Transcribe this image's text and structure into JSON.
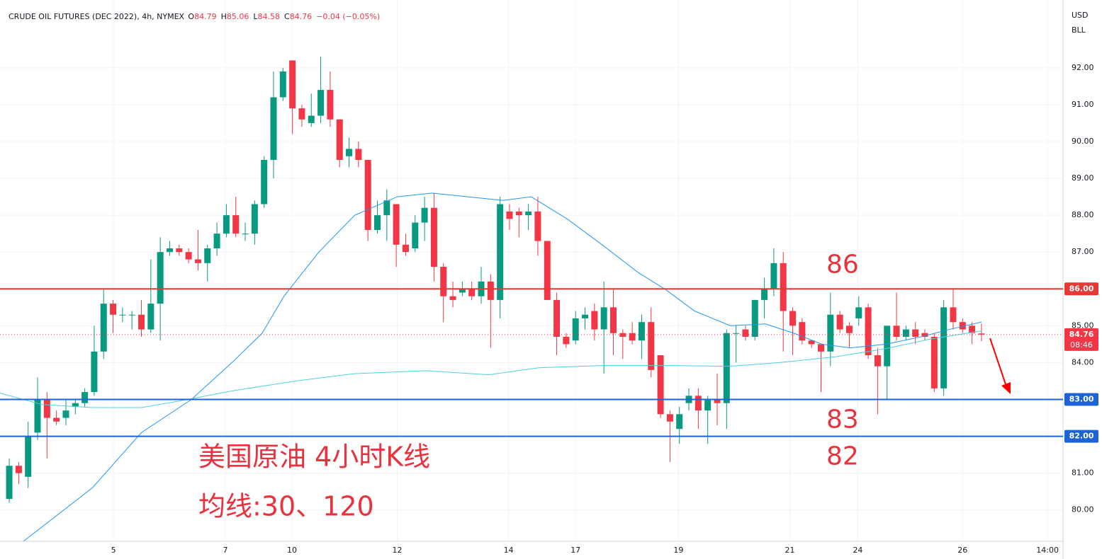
{
  "chart_data": {
    "type": "candlestick",
    "title": "CRUDE OIL FUTURES (DEC 2022), 4h, NYMEX",
    "ohlc_legend": [
      {
        "prefix": "O",
        "value": 84.79
      },
      {
        "prefix": "H",
        "value": 85.06
      },
      {
        "prefix": "L",
        "value": 84.58
      },
      {
        "prefix": "C",
        "value": 84.76
      }
    ],
    "change": "−0.04 (−0.05%)",
    "currency": "USD",
    "unit": "BLL",
    "up_color": "#089981",
    "down_color": "#f23645",
    "x": [
      0,
      1,
      2,
      3,
      4,
      5,
      6,
      7,
      8,
      9,
      10,
      11,
      12,
      13,
      14,
      15,
      16,
      17,
      18,
      19,
      20,
      21,
      22,
      23,
      24,
      25,
      26,
      27,
      28,
      29,
      30,
      31,
      32,
      33,
      34,
      35,
      36,
      37,
      38,
      39,
      40,
      41,
      42,
      43,
      44,
      45,
      46,
      47,
      48,
      49,
      50,
      51,
      52,
      53,
      54,
      55,
      56,
      57,
      58,
      59,
      60,
      61,
      62,
      63,
      64,
      65,
      66,
      67,
      68,
      69,
      70,
      71,
      72,
      73,
      74,
      75,
      76,
      77,
      78,
      79,
      80,
      81,
      82,
      83,
      84,
      85,
      86,
      87,
      88,
      89,
      90,
      91,
      92,
      93,
      94,
      95,
      96,
      97,
      98,
      99,
      100,
      101,
      102,
      103
    ],
    "open": [
      80.3,
      81.2,
      80.9,
      82.1,
      83.0,
      82.5,
      82.5,
      82.8,
      82.9,
      83.2,
      84.3,
      85.6,
      85.3,
      85.3,
      85.3,
      84.9,
      85.6,
      87.0,
      87.1,
      87.0,
      86.8,
      86.7,
      87.1,
      87.5,
      88.0,
      87.5,
      87.5,
      88.3,
      89.5,
      91.2,
      92.2,
      90.9,
      90.5,
      90.7,
      91.4,
      90.6,
      89.6,
      89.8,
      89.5,
      87.6,
      88.0,
      88.3,
      87.2,
      87.1,
      87.8,
      88.2,
      86.6,
      85.8,
      85.9,
      86.0,
      85.8,
      86.2,
      85.7,
      88.1,
      88.1,
      88.0,
      88.1,
      87.3,
      85.7,
      84.7,
      84.6,
      85.2,
      85.4,
      84.9,
      85.5,
      84.8,
      84.8,
      84.6,
      85.1,
      84.2,
      82.6,
      82.2,
      82.9,
      83.1,
      82.7,
      83.0,
      82.9,
      84.8,
      84.9,
      84.7,
      85.7,
      86.0,
      86.7,
      85.4,
      85.1,
      84.6,
      84.5,
      84.3,
      85.3,
      85.0,
      85.2,
      85.5,
      84.2,
      83.9,
      85.0,
      84.7,
      84.9,
      84.8,
      84.7,
      83.3,
      85.5,
      85.1,
      85.0,
      84.79
    ],
    "high": [
      81.4,
      81.3,
      82.4,
      83.6,
      83.2,
      82.7,
      83.0,
      83.0,
      83.3,
      85.0,
      86.0,
      85.7,
      85.5,
      85.4,
      85.7,
      86.8,
      87.4,
      87.3,
      87.2,
      87.1,
      87.6,
      87.2,
      87.8,
      88.3,
      88.5,
      87.8,
      88.4,
      89.6,
      91.9,
      92.0,
      92.2,
      91.0,
      91.3,
      92.3,
      91.9,
      90.6,
      90.1,
      90.0,
      89.5,
      88.4,
      88.7,
      88.3,
      87.5,
      88.0,
      88.5,
      88.6,
      86.7,
      86.2,
      86.2,
      86.2,
      86.6,
      86.4,
      88.5,
      88.3,
      88.2,
      88.3,
      88.5,
      87.3,
      85.9,
      84.8,
      85.4,
      85.5,
      85.6,
      86.2,
      86.0,
      84.9,
      85.1,
      85.3,
      85.5,
      84.2,
      82.7,
      82.8,
      83.3,
      83.3,
      83.1,
      83.7,
      84.9,
      85.0,
      85.0,
      85.7,
      86.3,
      87.1,
      87.0,
      85.5,
      85.2,
      84.6,
      84.5,
      85.9,
      85.4,
      85.1,
      85.8,
      85.6,
      84.4,
      85.0,
      85.9,
      85.0,
      85.1,
      84.9,
      84.8,
      85.7,
      86.0,
      85.2,
      85.1,
      85.06
    ],
    "low": [
      80.2,
      80.7,
      80.6,
      81.9,
      81.4,
      82.3,
      82.3,
      82.6,
      82.8,
      83.1,
      84.1,
      84.8,
      85.1,
      84.9,
      84.7,
      84.8,
      84.6,
      86.9,
      86.9,
      86.7,
      86.5,
      86.2,
      86.9,
      87.4,
      87.4,
      87.3,
      87.2,
      88.2,
      89.0,
      91.1,
      90.2,
      90.4,
      90.4,
      90.5,
      90.4,
      89.3,
      89.3,
      89.3,
      87.3,
      87.5,
      87.3,
      86.6,
      86.9,
      87.0,
      87.3,
      86.2,
      85.1,
      85.5,
      85.8,
      85.7,
      85.6,
      84.4,
      85.2,
      87.6,
      87.4,
      87.6,
      86.9,
      85.7,
      84.2,
      84.4,
      84.5,
      84.9,
      84.6,
      83.7,
      84.2,
      84.1,
      84.5,
      84.1,
      83.6,
      82.5,
      81.3,
      81.8,
      82.7,
      82.2,
      81.8,
      82.3,
      82.2,
      84.0,
      84.6,
      84.6,
      85.2,
      85.8,
      84.3,
      84.2,
      84.5,
      84.4,
      83.2,
      83.9,
      84.8,
      84.4,
      85.0,
      84.1,
      82.6,
      83.0,
      84.6,
      84.6,
      84.5,
      84.6,
      83.2,
      83.1,
      84.9,
      84.8,
      84.5,
      84.58
    ],
    "close": [
      81.2,
      81.0,
      82.0,
      83.0,
      82.5,
      82.4,
      82.7,
      82.9,
      83.2,
      84.3,
      85.6,
      85.3,
      85.3,
      85.3,
      84.9,
      85.6,
      87.0,
      87.1,
      87.0,
      86.8,
      86.7,
      87.1,
      87.5,
      88.0,
      87.5,
      87.5,
      88.3,
      89.5,
      91.2,
      91.9,
      90.9,
      90.6,
      90.7,
      91.4,
      90.6,
      89.5,
      89.8,
      89.5,
      87.6,
      88.0,
      88.4,
      87.2,
      87.0,
      87.8,
      88.2,
      86.6,
      85.8,
      85.7,
      86.0,
      85.8,
      86.2,
      85.7,
      88.3,
      87.9,
      88.0,
      88.1,
      87.3,
      85.7,
      84.7,
      84.5,
      85.2,
      85.3,
      84.9,
      85.5,
      84.8,
      84.7,
      84.6,
      85.1,
      83.8,
      82.6,
      82.4,
      82.6,
      83.1,
      82.7,
      83.0,
      82.9,
      84.8,
      84.8,
      84.7,
      85.7,
      86.0,
      86.7,
      85.4,
      85.0,
      84.6,
      84.5,
      84.3,
      85.3,
      84.9,
      84.8,
      85.5,
      84.2,
      83.9,
      85.0,
      84.7,
      84.9,
      84.7,
      84.7,
      83.3,
      85.5,
      85.1,
      84.9,
      84.8,
      84.76
    ],
    "moving_averages": [
      {
        "color": "#2196f3",
        "x": [
          1.5,
          8.8,
          14.0,
          19.3,
          23.8,
          26.8,
          29.1,
          32.8,
          36.6,
          41.1,
          44.8,
          48.6,
          52.3,
          55.3,
          59.1,
          62.8,
          66.6,
          69.6,
          72.6,
          76.4,
          80.1,
          83.1,
          86.1,
          89.1,
          92.9,
          96.6,
          99.6,
          103
        ],
        "values": [
          79.15,
          80.6,
          82.1,
          83.0,
          84.05,
          84.8,
          85.8,
          87.0,
          88.0,
          88.5,
          88.6,
          88.5,
          88.4,
          88.5,
          87.9,
          87.2,
          86.45,
          85.97,
          85.4,
          85.0,
          85.05,
          84.8,
          84.5,
          84.4,
          84.5,
          84.7,
          84.9,
          85.1
        ]
      },
      {
        "color": "#4dd0e1",
        "x": [
          -0.98,
          3.5,
          8.8,
          14.0,
          18.5,
          23.8,
          30.6,
          36.6,
          44.1,
          50.8,
          56.1,
          62.8,
          70.3,
          76.4,
          81.6,
          87.6,
          92.9,
          97.4,
          103
        ],
        "values": [
          83.17,
          82.86,
          82.78,
          82.78,
          82.98,
          83.24,
          83.51,
          83.7,
          83.78,
          83.67,
          83.86,
          83.92,
          83.92,
          83.9,
          84.0,
          84.16,
          84.38,
          84.63,
          84.86
        ]
      }
    ],
    "levels": [
      {
        "value": 86,
        "label": "86.00",
        "color": "#e53935"
      },
      {
        "value": 83,
        "label": "83.00",
        "color": "#1e63d6"
      },
      {
        "value": 82,
        "label": "82.00",
        "color": "#1e63d6"
      }
    ],
    "last_price": 84.76,
    "countdown": "08:46",
    "annotations": [
      "美国原油 4小时K线",
      "均线:30、120"
    ],
    "xlim": [
      -0.98,
      111.64
    ],
    "ylim": [
      79.15,
      93.84
    ],
    "xticks": [
      {
        "value": 11.04,
        "label": "5"
      },
      {
        "value": 22.9,
        "label": "7"
      },
      {
        "value": 29.95,
        "label": "10"
      },
      {
        "value": 41.1,
        "label": "12"
      },
      {
        "value": 52.9,
        "label": "14"
      },
      {
        "value": 60.0,
        "label": "17"
      },
      {
        "value": 70.9,
        "label": "19"
      },
      {
        "value": 82.7,
        "label": "21"
      },
      {
        "value": 89.9,
        "label": "24"
      },
      {
        "value": 101.0,
        "label": "26"
      },
      {
        "value": 110.0,
        "label": "14:00"
      }
    ],
    "yticks": [
      {
        "value": 80,
        "label": "80.00"
      },
      {
        "value": 81,
        "label": "81.00"
      },
      {
        "value": 82,
        "label": "82.00"
      },
      {
        "value": 83,
        "label": "83.00"
      },
      {
        "value": 84,
        "label": "84.00"
      },
      {
        "value": 85,
        "label": "85.00"
      },
      {
        "value": 86,
        "label": "86.00"
      },
      {
        "value": 87,
        "label": "87.00"
      },
      {
        "value": 88,
        "label": "88.00"
      },
      {
        "value": 89,
        "label": "89.00"
      },
      {
        "value": 90,
        "label": "90.00"
      },
      {
        "value": 91,
        "label": "91.00"
      },
      {
        "value": 92,
        "label": "92.00"
      }
    ],
    "grid": true
  }
}
